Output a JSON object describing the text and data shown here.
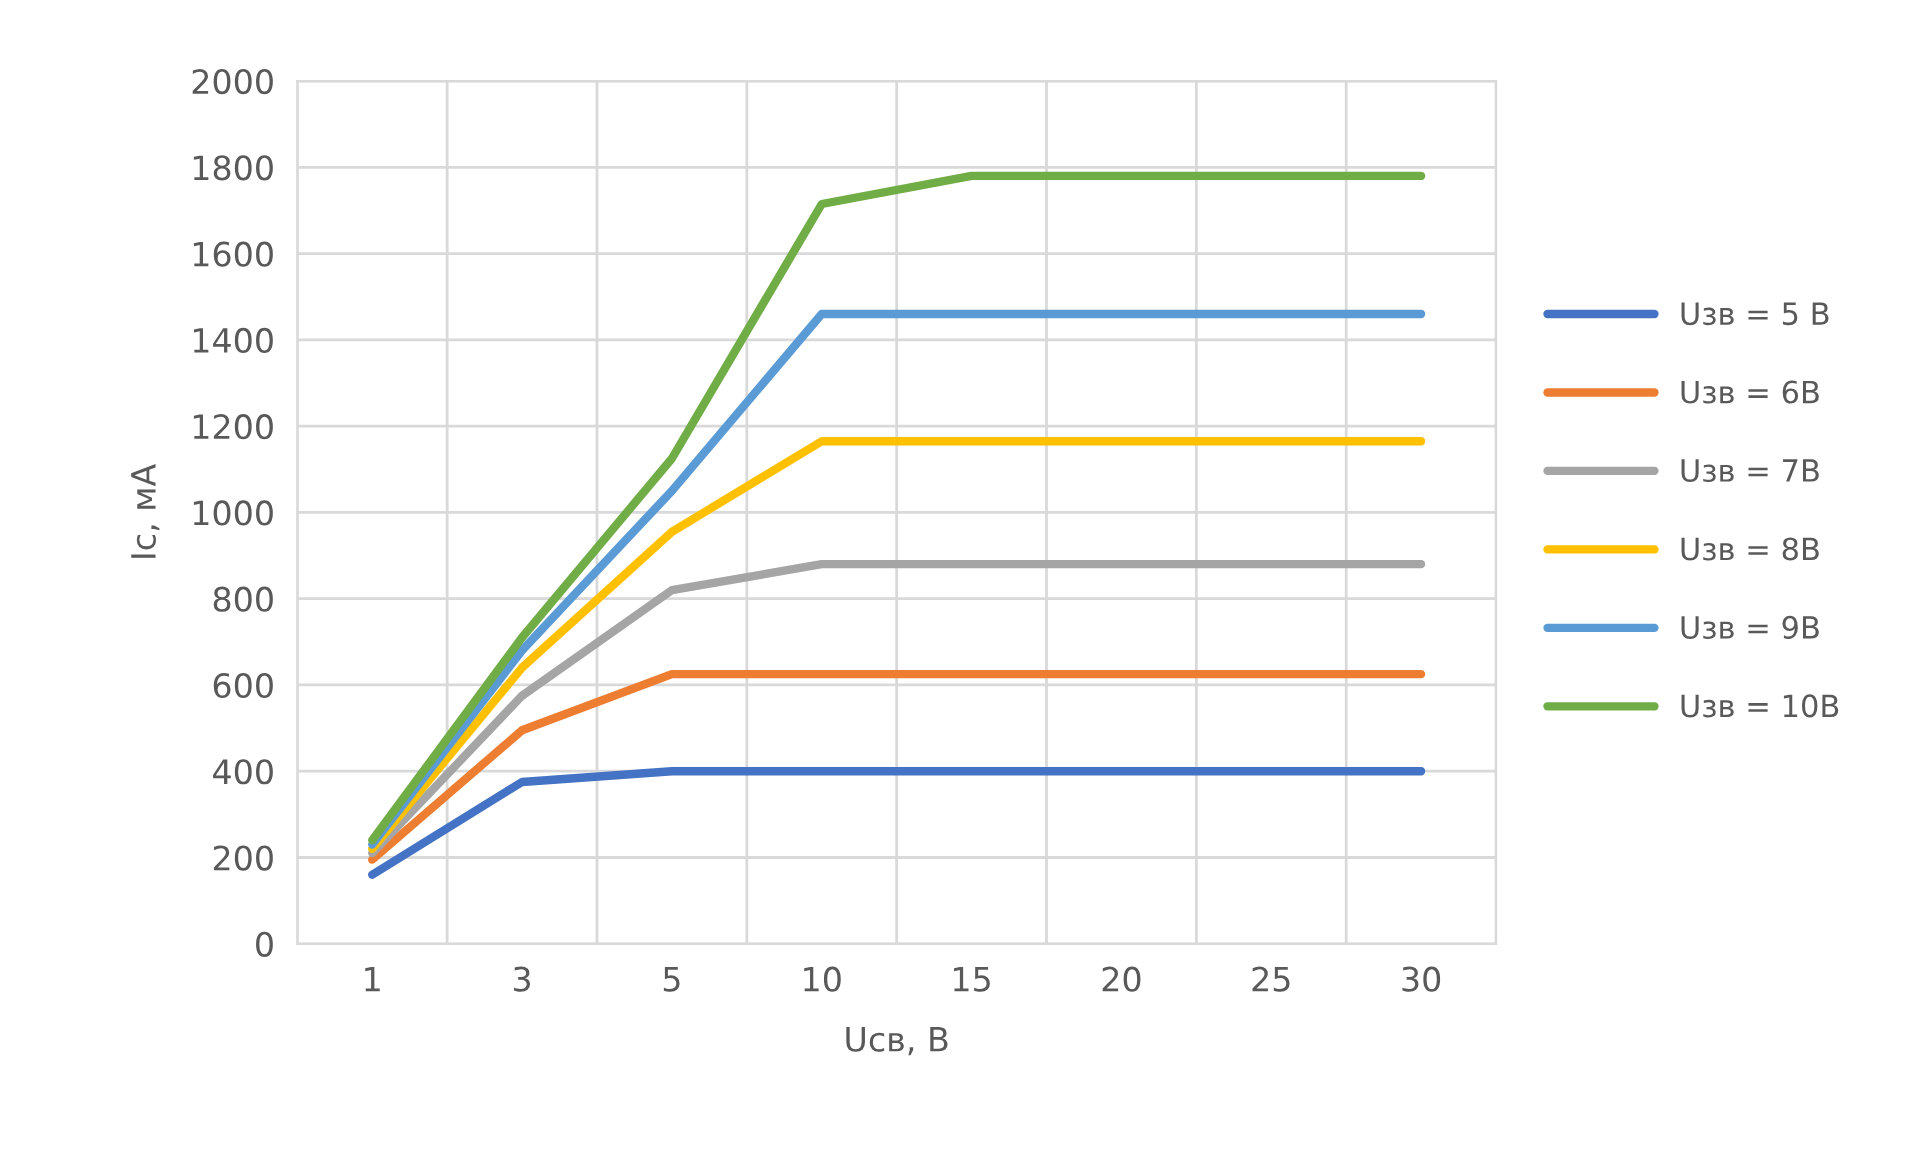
{
  "chart_data": {
    "type": "line",
    "xlabel": "Uсв, В",
    "ylabel": "Ic, мА",
    "categories": [
      "1",
      "3",
      "5",
      "10",
      "15",
      "20",
      "25",
      "30"
    ],
    "ylim": [
      0,
      2000
    ],
    "yticks": [
      0,
      200,
      400,
      600,
      800,
      1000,
      1200,
      1400,
      1600,
      1800,
      2000
    ],
    "grid": true,
    "legend": "right",
    "marker": "none",
    "line_style": "solid",
    "series": [
      {
        "name": "Uзв = 5 В",
        "color": "#4472c4",
        "values": [
          160,
          375,
          400,
          400,
          400,
          400,
          400,
          400
        ]
      },
      {
        "name": "Uзв = 6В",
        "color": "#ed7d31",
        "values": [
          195,
          495,
          625,
          625,
          625,
          625,
          625,
          625
        ]
      },
      {
        "name": "Uзв = 7В",
        "color": "#a5a5a5",
        "values": [
          210,
          575,
          820,
          880,
          880,
          880,
          880,
          880
        ]
      },
      {
        "name": "Uзв = 8В",
        "color": "#ffc000",
        "values": [
          220,
          640,
          955,
          1165,
          1165,
          1165,
          1165,
          1165
        ]
      },
      {
        "name": "Uзв = 9В",
        "color": "#5b9bd5",
        "values": [
          230,
          680,
          1050,
          1460,
          1460,
          1460,
          1460,
          1460
        ]
      },
      {
        "name": "Uзв = 10В",
        "color": "#70ad47",
        "values": [
          240,
          710,
          1125,
          1715,
          1780,
          1780,
          1780,
          1780
        ]
      }
    ]
  }
}
